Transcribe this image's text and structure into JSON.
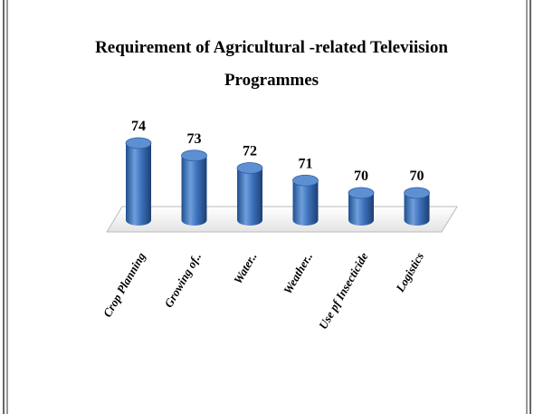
{
  "chart_data": {
    "type": "bar",
    "title": [
      "Requirement of Agricultural -related Televiision",
      "Programmes"
    ],
    "categories": [
      "Crop Planning",
      "Growing of..",
      "Water..",
      "Weather..",
      "Use pf Insecticide",
      "Logistics"
    ],
    "values": [
      74,
      73,
      72,
      71,
      70,
      70
    ],
    "color": "#3f73bd"
  }
}
